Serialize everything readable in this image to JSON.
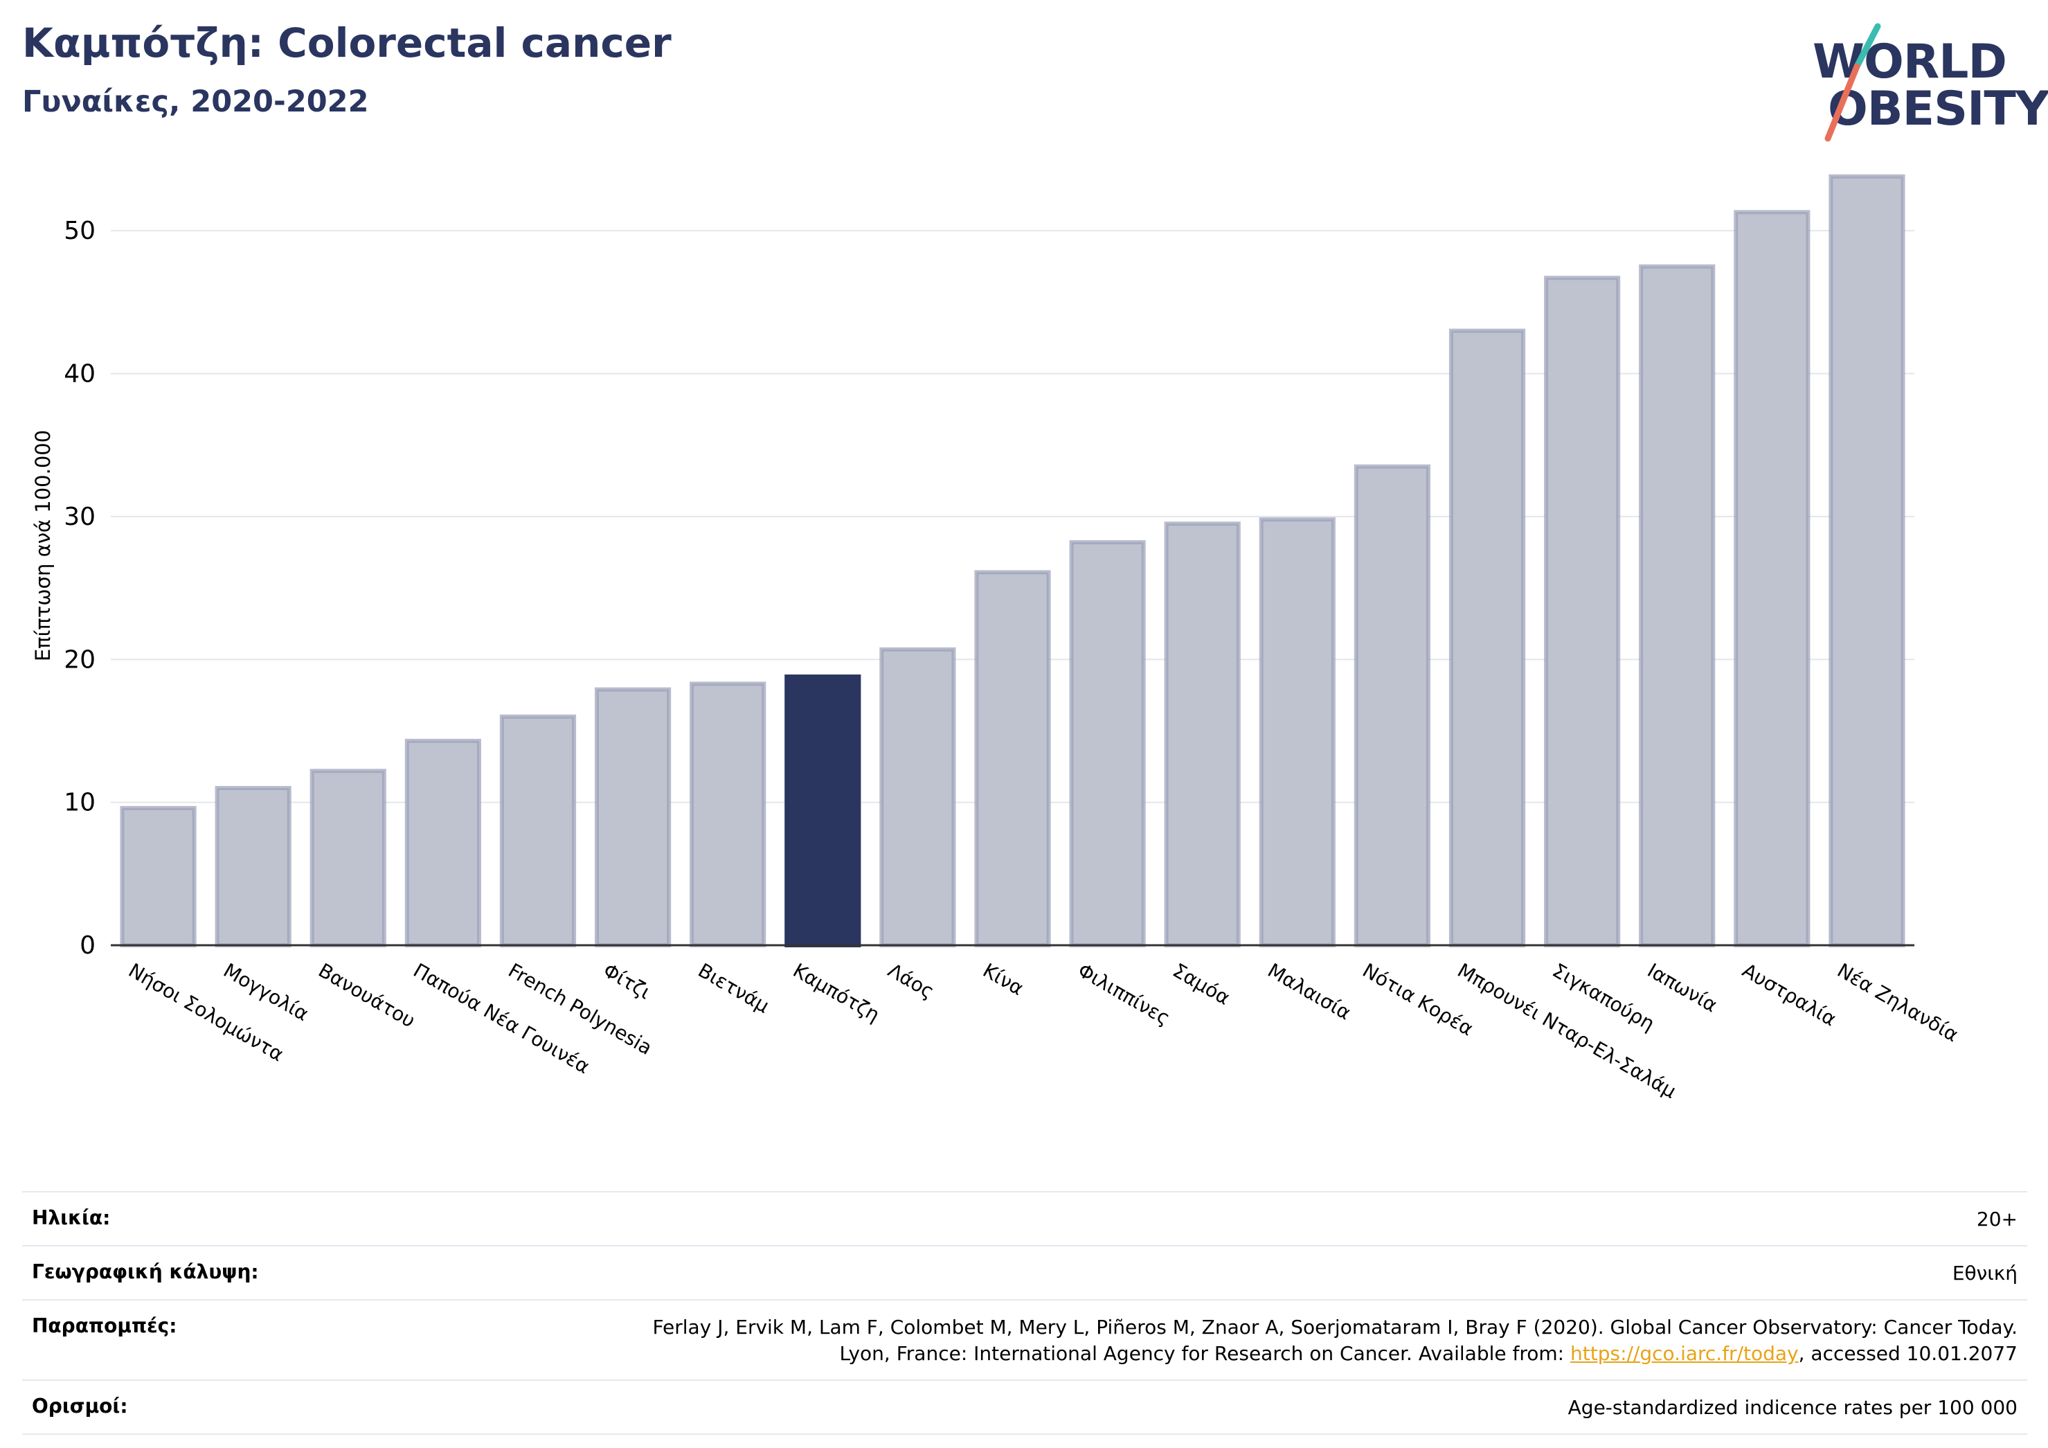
{
  "header": {
    "title": "Καμπότζη: Colorectal cancer",
    "subtitle": "Γυναίκες, 2020-2022"
  },
  "logo": {
    "line1": "WORLD",
    "line2": "OBESITY",
    "colors": {
      "text": "#2a3560",
      "slash_top": "#3bbcb0",
      "slash_bottom": "#e8705a"
    }
  },
  "chart_data": {
    "type": "bar",
    "ylabel": "Επίπτωση ανά 100.000",
    "xlabel": "",
    "ylim": [
      0,
      55
    ],
    "yticks": [
      0,
      10,
      20,
      30,
      40,
      50
    ],
    "grid": true,
    "categories": [
      "Νήσοι Σολομώντα",
      "Μογγολία",
      "Βανουάτου",
      "Παπούα Νέα Γουινέα",
      "French Polynesia",
      "Φίτζι",
      "Βιετνάμ",
      "Καμπότζη",
      "Λάος",
      "Κίνα",
      "Φιλιππίνες",
      "Σαμόα",
      "Μαλαισία",
      "Νότια Κορέα",
      "Μπρουνέι Νταρ-Ελ-Σαλάμ",
      "Σιγκαπούρη",
      "Ιαπωνία",
      "Αυστραλία",
      "Νέα Ζηλανδία"
    ],
    "values": [
      9.6,
      11.0,
      12.2,
      14.3,
      16.0,
      17.9,
      18.3,
      18.8,
      20.7,
      26.1,
      28.2,
      29.5,
      29.8,
      33.5,
      43.0,
      46.7,
      47.5,
      51.3,
      53.8
    ],
    "highlight": "Καμπότζη",
    "colors": {
      "bar": "#bfc3cf",
      "bar_edge": "#9aa0b8",
      "highlight": "#2a3560",
      "grid": "#e4e6ec",
      "axis": "#333333"
    }
  },
  "info": {
    "rows": [
      {
        "label": "Ηλικία:",
        "value": "20+"
      },
      {
        "label": "Γεωγραφική κάλυψη:",
        "value": "Εθνική"
      },
      {
        "label": "Παραπομπές:",
        "line1": "Ferlay J, Ervik M, Lam F, Colombet M, Mery L, Piñeros M, Znaor A, Soerjomataram I, Bray F (2020). Global Cancer Observatory: Cancer Today.",
        "line2_prefix": "Lyon, France: International Agency for Research on Cancer. Available from: ",
        "link": "https://gco.iarc.fr/today",
        "line2_suffix": ", accessed 10.01.2077"
      },
      {
        "label": "Ορισμοί:",
        "value": "Age-standardized indicence rates per 100 000"
      }
    ]
  }
}
